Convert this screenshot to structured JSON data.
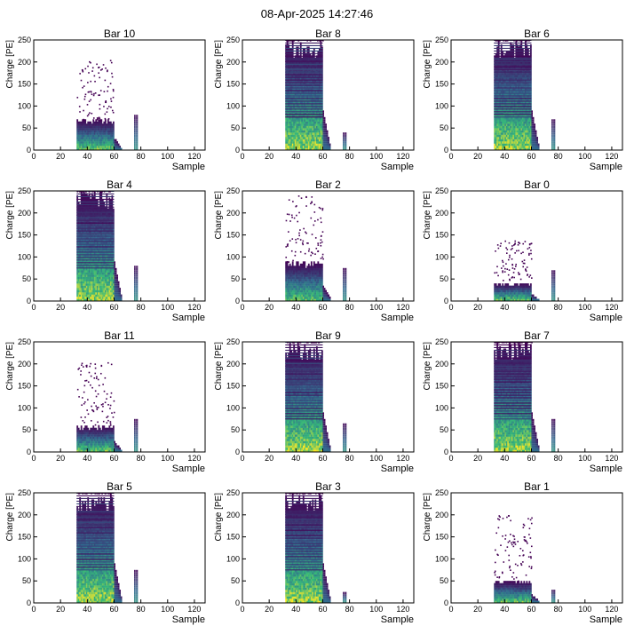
{
  "title": "08-Apr-2025 14:27:46",
  "colors": {
    "low": "#440154",
    "mid1": "#31688e",
    "mid2": "#35b779",
    "high": "#fde725"
  },
  "chart_data": [
    {
      "type": "heatmap",
      "title": "Bar 10",
      "xlabel": "Sample",
      "ylabel": "Charge [PE]",
      "xlim": [
        0,
        128
      ],
      "ylim": [
        0,
        250
      ],
      "xticks": [
        0,
        20,
        40,
        60,
        80,
        100,
        120
      ],
      "yticks": [
        0,
        50,
        100,
        150,
        200,
        250
      ],
      "band_x": [
        32,
        60
      ],
      "band_max": 70,
      "scatter_max": 205,
      "secondary_x": [
        75,
        78
      ],
      "secondary_max": 80,
      "saturated": false
    },
    {
      "type": "heatmap",
      "title": "Bar 8",
      "xlabel": "Sample",
      "ylabel": "Charge [PE]",
      "xlim": [
        0,
        128
      ],
      "ylim": [
        0,
        250
      ],
      "xticks": [
        0,
        20,
        40,
        60,
        80,
        100,
        120
      ],
      "yticks": [
        0,
        50,
        100,
        150,
        200,
        250
      ],
      "band_x": [
        32,
        60
      ],
      "band_max": 250,
      "scatter_max": 250,
      "secondary_x": [
        75,
        78
      ],
      "secondary_max": 38,
      "saturated": true
    },
    {
      "type": "heatmap",
      "title": "Bar 6",
      "xlabel": "Sample",
      "ylabel": "Charge [PE]",
      "xlim": [
        0,
        128
      ],
      "ylim": [
        0,
        250
      ],
      "xticks": [
        0,
        20,
        40,
        60,
        80,
        100,
        120
      ],
      "yticks": [
        0,
        50,
        100,
        150,
        200,
        250
      ],
      "band_x": [
        32,
        60
      ],
      "band_max": 250,
      "scatter_max": 250,
      "secondary_x": [
        75,
        78
      ],
      "secondary_max": 70,
      "saturated": true
    },
    {
      "type": "heatmap",
      "title": "Bar 4",
      "xlabel": "Sample",
      "ylabel": "Charge [PE]",
      "xlim": [
        0,
        128
      ],
      "ylim": [
        0,
        250
      ],
      "xticks": [
        0,
        20,
        40,
        60,
        80,
        100,
        120
      ],
      "yticks": [
        0,
        50,
        100,
        150,
        200,
        250
      ],
      "band_x": [
        32,
        60
      ],
      "band_max": 250,
      "scatter_max": 250,
      "secondary_x": [
        75,
        78
      ],
      "secondary_max": 80,
      "saturated": true
    },
    {
      "type": "heatmap",
      "title": "Bar 2",
      "xlabel": "Sample",
      "ylabel": "Charge [PE]",
      "xlim": [
        0,
        128
      ],
      "ylim": [
        0,
        250
      ],
      "xticks": [
        0,
        20,
        40,
        60,
        80,
        100,
        120
      ],
      "yticks": [
        0,
        50,
        100,
        150,
        200,
        250
      ],
      "band_x": [
        32,
        60
      ],
      "band_max": 90,
      "scatter_max": 240,
      "secondary_x": [
        75,
        78
      ],
      "secondary_max": 75,
      "saturated": false
    },
    {
      "type": "heatmap",
      "title": "Bar 0",
      "xlabel": "Sample",
      "ylabel": "Charge [PE]",
      "xlim": [
        0,
        128
      ],
      "ylim": [
        0,
        250
      ],
      "xticks": [
        0,
        20,
        40,
        60,
        80,
        100,
        120
      ],
      "yticks": [
        0,
        50,
        100,
        150,
        200,
        250
      ],
      "band_x": [
        32,
        60
      ],
      "band_max": 40,
      "scatter_max": 140,
      "secondary_x": [
        75,
        78
      ],
      "secondary_max": 70,
      "saturated": false
    },
    {
      "type": "heatmap",
      "title": "Bar 11",
      "xlabel": "Sample",
      "ylabel": "Charge [PE]",
      "xlim": [
        0,
        128
      ],
      "ylim": [
        0,
        250
      ],
      "xticks": [
        0,
        20,
        40,
        60,
        80,
        100,
        120
      ],
      "yticks": [
        0,
        50,
        100,
        150,
        200,
        250
      ],
      "band_x": [
        32,
        60
      ],
      "band_max": 60,
      "scatter_max": 205,
      "secondary_x": [
        75,
        78
      ],
      "secondary_max": 75,
      "saturated": false
    },
    {
      "type": "heatmap",
      "title": "Bar 9",
      "xlabel": "Sample",
      "ylabel": "Charge [PE]",
      "xlim": [
        0,
        128
      ],
      "ylim": [
        0,
        250
      ],
      "xticks": [
        0,
        20,
        40,
        60,
        80,
        100,
        120
      ],
      "yticks": [
        0,
        50,
        100,
        150,
        200,
        250
      ],
      "band_x": [
        32,
        60
      ],
      "band_max": 250,
      "scatter_max": 250,
      "secondary_x": [
        75,
        78
      ],
      "secondary_max": 65,
      "saturated": true
    },
    {
      "type": "heatmap",
      "title": "Bar 7",
      "xlabel": "Sample",
      "ylabel": "Charge [PE]",
      "xlim": [
        0,
        128
      ],
      "ylim": [
        0,
        250
      ],
      "xticks": [
        0,
        20,
        40,
        60,
        80,
        100,
        120
      ],
      "yticks": [
        0,
        50,
        100,
        150,
        200,
        250
      ],
      "band_x": [
        32,
        60
      ],
      "band_max": 250,
      "scatter_max": 250,
      "secondary_x": [
        75,
        78
      ],
      "secondary_max": 75,
      "saturated": true
    },
    {
      "type": "heatmap",
      "title": "Bar 5",
      "xlabel": "Sample",
      "ylabel": "Charge [PE]",
      "xlim": [
        0,
        128
      ],
      "ylim": [
        0,
        250
      ],
      "xticks": [
        0,
        20,
        40,
        60,
        80,
        100,
        120
      ],
      "yticks": [
        0,
        50,
        100,
        150,
        200,
        250
      ],
      "band_x": [
        32,
        60
      ],
      "band_max": 250,
      "scatter_max": 250,
      "secondary_x": [
        75,
        78
      ],
      "secondary_max": 75,
      "saturated": true
    },
    {
      "type": "heatmap",
      "title": "Bar 3",
      "xlabel": "Sample",
      "ylabel": "Charge [PE]",
      "xlim": [
        0,
        128
      ],
      "ylim": [
        0,
        250
      ],
      "xticks": [
        0,
        20,
        40,
        60,
        80,
        100,
        120
      ],
      "yticks": [
        0,
        50,
        100,
        150,
        200,
        250
      ],
      "band_x": [
        32,
        60
      ],
      "band_max": 250,
      "scatter_max": 250,
      "secondary_x": [
        75,
        78
      ],
      "secondary_max": 22,
      "saturated": true
    },
    {
      "type": "heatmap",
      "title": "Bar 1",
      "xlabel": "Sample",
      "ylabel": "Charge [PE]",
      "xlim": [
        0,
        128
      ],
      "ylim": [
        0,
        250
      ],
      "xticks": [
        0,
        20,
        40,
        60,
        80,
        100,
        120
      ],
      "yticks": [
        0,
        50,
        100,
        150,
        200,
        250
      ],
      "band_x": [
        32,
        60
      ],
      "band_max": 50,
      "scatter_max": 200,
      "secondary_x": [
        75,
        78
      ],
      "secondary_max": 30,
      "saturated": false
    }
  ]
}
